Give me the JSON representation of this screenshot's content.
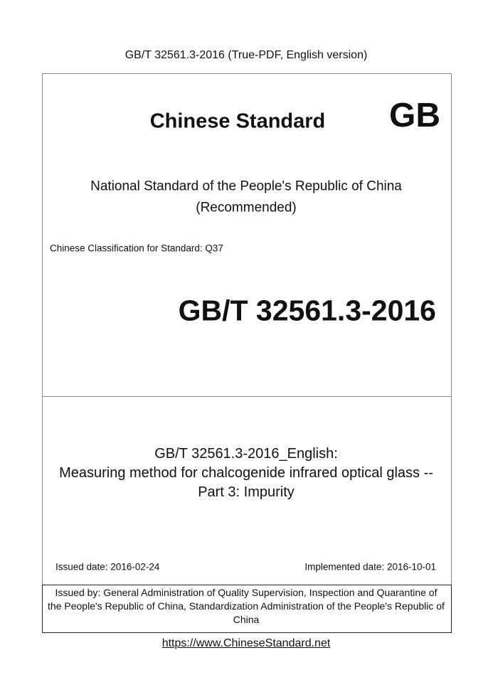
{
  "header": "GB/T 32561.3-2016 (True-PDF, English version)",
  "cover": {
    "standard_label": "Chinese Standard",
    "mark": "GB",
    "national_lines": [
      "National Standard of the People's Republic of China",
      "(Recommended)"
    ],
    "classification": "Chinese Classification for Standard: Q37",
    "code": "GB/T 32561.3-2016"
  },
  "title_lines": [
    "GB/T 32561.3-2016_English:",
    "Measuring method for chalcogenide infrared optical glass --",
    "Part 3: Impurity"
  ],
  "dates": {
    "issued": "Issued date: 2016-02-24",
    "implemented": "Implemented date: 2016-10-01"
  },
  "issuer_lines": [
    "Issued by: General Administration of Quality Supervision, Inspection and Quarantine of",
    "the People's Republic of China, Standardization Administration of the People's Republic of",
    "China"
  ],
  "footer_link": "https://www.ChineseStandard.net"
}
